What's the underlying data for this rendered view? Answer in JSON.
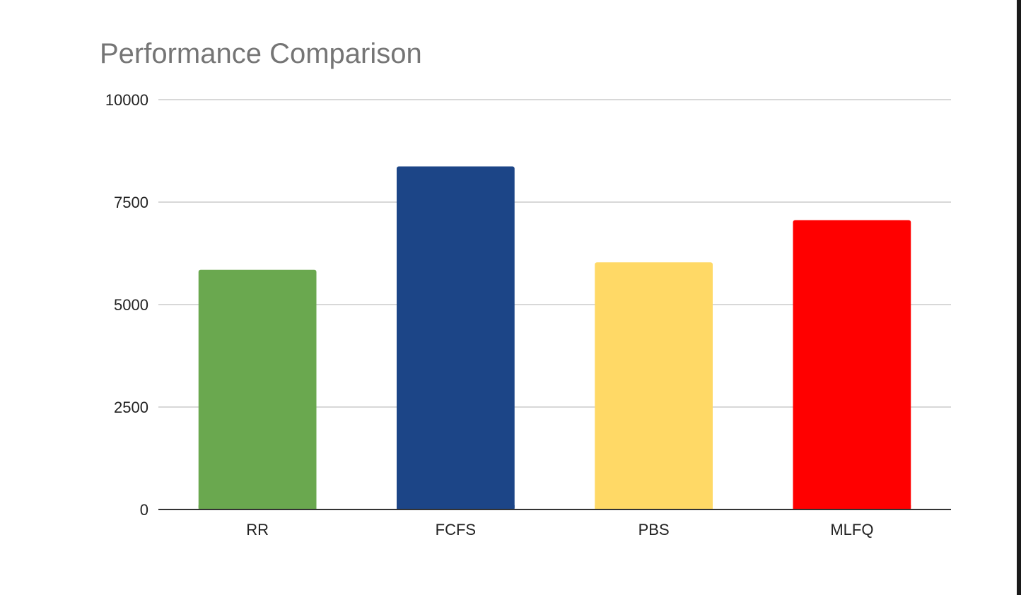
{
  "chart_data": {
    "type": "bar",
    "title": "Performance Comparison",
    "categories": [
      "RR",
      "FCFS",
      "PBS",
      "MLFQ"
    ],
    "values": [
      5850,
      8370,
      6030,
      7060
    ],
    "colors": [
      "#6aa84f",
      "#1c4587",
      "#ffd966",
      "#ff0000"
    ],
    "ylim": [
      0,
      10000
    ],
    "yticks": [
      "0",
      "2500",
      "5000",
      "7500",
      "10000"
    ],
    "xlabel": "",
    "ylabel": "",
    "grid": true,
    "legend": "none"
  },
  "theme": {
    "title_color": "#757575",
    "grid_color": "#cccccc",
    "axis_color": "#333333",
    "label_color": "#222222"
  }
}
